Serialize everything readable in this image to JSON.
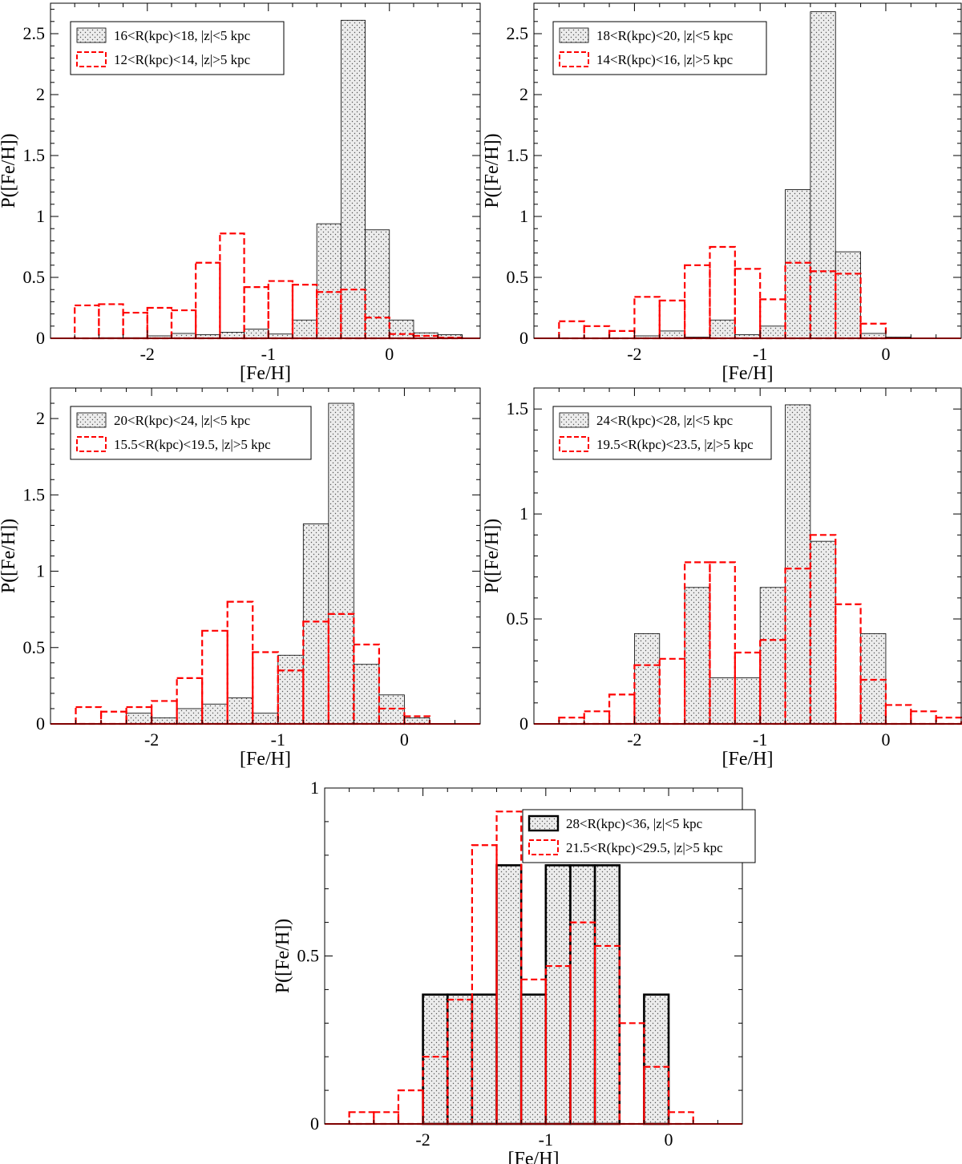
{
  "colors": {
    "black_series": "#000000",
    "red_series": "#ff0000",
    "fill": "#e6e6e6"
  },
  "chart_data": [
    {
      "type": "bar",
      "subtype": "histogram",
      "xlabel": "[Fe/H]",
      "ylabel": "P([Fe/H])",
      "xlim": [
        -2.8,
        0.75
      ],
      "ylim": [
        0,
        2.75
      ],
      "xticks": [
        -2,
        -1,
        0
      ],
      "xtick_labels": [
        "-2",
        "-1",
        "0"
      ],
      "yticks": [
        0,
        0.5,
        1,
        1.5,
        2,
        2.5
      ],
      "ytick_labels": [
        "0",
        "0.5",
        "1",
        "1.5",
        "2",
        "2.5"
      ],
      "legend_position": "top-left",
      "black_bold": false,
      "series": [
        {
          "name": "16<R(kpc)<18, |z|<5 kpc",
          "style": "dotted-fill",
          "bin_left": [
            -2.4,
            -2.2,
            -2.0,
            -1.8,
            -1.6,
            -1.4,
            -1.2,
            -1.0,
            -0.8,
            -0.6,
            -0.4,
            -0.2,
            0.0,
            0.2,
            0.4
          ],
          "bin_width": 0.2,
          "values": [
            0.005,
            0.005,
            0.02,
            0.04,
            0.03,
            0.05,
            0.075,
            0.035,
            0.15,
            0.94,
            2.61,
            0.89,
            0.15,
            0.045,
            0.03
          ]
        },
        {
          "name": "12<R(kpc)<14, |z|>5 kpc",
          "style": "dashed",
          "bin_left": [
            -2.6,
            -2.4,
            -2.2,
            -2.0,
            -1.8,
            -1.6,
            -1.4,
            -1.2,
            -1.0,
            -0.8,
            -0.6,
            -0.4,
            -0.2,
            0.0,
            0.2,
            0.4
          ],
          "bin_width": 0.2,
          "values": [
            0.27,
            0.28,
            0.21,
            0.25,
            0.23,
            0.62,
            0.86,
            0.42,
            0.47,
            0.44,
            0.38,
            0.4,
            0.17,
            0.035,
            0.02,
            0.005
          ]
        }
      ]
    },
    {
      "type": "bar",
      "subtype": "histogram",
      "xlabel": "[Fe/H]",
      "ylabel": "P([Fe/H])",
      "xlim": [
        -2.8,
        0.6
      ],
      "ylim": [
        0,
        2.75
      ],
      "xticks": [
        -2,
        -1,
        0
      ],
      "xtick_labels": [
        "-2",
        "-1",
        "0"
      ],
      "yticks": [
        0,
        0.5,
        1,
        1.5,
        2,
        2.5
      ],
      "ytick_labels": [
        "0",
        "0.5",
        "1",
        "1.5",
        "2",
        "2.5"
      ],
      "legend_position": "top-left",
      "black_bold": false,
      "series": [
        {
          "name": "18<R(kpc)<20, |z|<5 kpc",
          "style": "dotted-fill",
          "bin_left": [
            -2.0,
            -1.8,
            -1.6,
            -1.4,
            -1.2,
            -1.0,
            -0.8,
            -0.6,
            -0.4,
            -0.2,
            0.0
          ],
          "bin_width": 0.2,
          "values": [
            0.02,
            0.06,
            0.01,
            0.15,
            0.03,
            0.1,
            1.22,
            2.68,
            0.71,
            0.04,
            0.01
          ]
        },
        {
          "name": "14<R(kpc)<16, |z|>5 kpc",
          "style": "dashed",
          "bin_left": [
            -2.6,
            -2.4,
            -2.2,
            -2.0,
            -1.8,
            -1.6,
            -1.4,
            -1.2,
            -1.0,
            -0.8,
            -0.6,
            -0.4,
            -0.2
          ],
          "bin_width": 0.2,
          "values": [
            0.14,
            0.1,
            0.06,
            0.34,
            0.31,
            0.6,
            0.75,
            0.57,
            0.32,
            0.62,
            0.55,
            0.53,
            0.12
          ]
        }
      ]
    },
    {
      "type": "bar",
      "subtype": "histogram",
      "xlabel": "[Fe/H]",
      "ylabel": "P([Fe/H])",
      "xlim": [
        -2.8,
        0.6
      ],
      "ylim": [
        0,
        2.2
      ],
      "xticks": [
        -2,
        -1,
        0
      ],
      "xtick_labels": [
        "-2",
        "-1",
        "0"
      ],
      "yticks": [
        0,
        0.5,
        1,
        1.5,
        2
      ],
      "ytick_labels": [
        "0",
        "0.5",
        "1",
        "1.5",
        "2"
      ],
      "legend_position": "top-left",
      "black_bold": false,
      "series": [
        {
          "name": "20<R(kpc)<24, |z|<5 kpc",
          "style": "dotted-fill",
          "bin_left": [
            -2.2,
            -2.0,
            -1.8,
            -1.6,
            -1.4,
            -1.2,
            -1.0,
            -0.8,
            -0.6,
            -0.4,
            -0.2,
            0.0
          ],
          "bin_width": 0.2,
          "values": [
            0.07,
            0.04,
            0.1,
            0.13,
            0.17,
            0.07,
            0.45,
            1.31,
            2.1,
            0.39,
            0.19,
            0.04
          ]
        },
        {
          "name": "15.5<R(kpc)<19.5, |z|>5 kpc",
          "style": "dashed",
          "bin_left": [
            -2.6,
            -2.4,
            -2.2,
            -2.0,
            -1.8,
            -1.6,
            -1.4,
            -1.2,
            -1.0,
            -0.8,
            -0.6,
            -0.4,
            -0.2,
            0.0
          ],
          "bin_width": 0.2,
          "values": [
            0.11,
            0.08,
            0.11,
            0.15,
            0.3,
            0.61,
            0.8,
            0.47,
            0.35,
            0.67,
            0.72,
            0.52,
            0.1,
            0.05
          ]
        }
      ]
    },
    {
      "type": "bar",
      "subtype": "histogram",
      "xlabel": "[Fe/H]",
      "ylabel": "P([Fe/H])",
      "xlim": [
        -2.8,
        0.6
      ],
      "ylim": [
        0,
        1.6
      ],
      "xticks": [
        -2,
        -1,
        0
      ],
      "xtick_labels": [
        "-2",
        "-1",
        "0"
      ],
      "yticks": [
        0,
        0.5,
        1,
        1.5
      ],
      "ytick_labels": [
        "0",
        "0.5",
        "1",
        "1.5"
      ],
      "legend_position": "top-left",
      "black_bold": false,
      "series": [
        {
          "name": "24<R(kpc)<28, |z|<5 kpc",
          "style": "dotted-fill",
          "bin_left": [
            -2.0,
            -1.8,
            -1.6,
            -1.4,
            -1.2,
            -1.0,
            -0.8,
            -0.6,
            -0.4,
            -0.2
          ],
          "bin_width": 0.2,
          "values": [
            0.43,
            0.0,
            0.65,
            0.22,
            0.22,
            0.65,
            1.52,
            0.87,
            0.0,
            0.43
          ]
        },
        {
          "name": "19.5<R(kpc)<23.5, |z|>5 kpc",
          "style": "dashed",
          "bin_left": [
            -2.6,
            -2.4,
            -2.2,
            -2.0,
            -1.8,
            -1.6,
            -1.4,
            -1.2,
            -1.0,
            -0.8,
            -0.6,
            -0.4,
            -0.2,
            0.0,
            0.2,
            0.4
          ],
          "bin_width": 0.2,
          "values": [
            0.03,
            0.06,
            0.14,
            0.28,
            0.31,
            0.77,
            0.77,
            0.34,
            0.4,
            0.74,
            0.9,
            0.57,
            0.21,
            0.09,
            0.06,
            0.03
          ]
        }
      ]
    },
    {
      "type": "bar",
      "subtype": "histogram",
      "xlabel": "[Fe/H]",
      "ylabel": "P([Fe/H])",
      "xlim": [
        -2.8,
        0.6
      ],
      "ylim": [
        0,
        1.0
      ],
      "xticks": [
        -2,
        -1,
        0
      ],
      "xtick_labels": [
        "-2",
        "-1",
        "0"
      ],
      "yticks": [
        0,
        0.5,
        1
      ],
      "ytick_labels": [
        "0",
        "0.5",
        "1"
      ],
      "legend_position": "top-right",
      "black_bold": true,
      "series": [
        {
          "name": "28<R(kpc)<36, |z|<5 kpc",
          "style": "dotted-fill-bold",
          "bin_left": [
            -2.0,
            -1.8,
            -1.6,
            -1.4,
            -1.2,
            -1.0,
            -0.8,
            -0.6,
            -0.4,
            -0.2
          ],
          "bin_width": 0.2,
          "values": [
            0.385,
            0.385,
            0.385,
            0.77,
            0.385,
            0.77,
            0.77,
            0.77,
            0.0,
            0.385
          ]
        },
        {
          "name": "21.5<R(kpc)<29.5, |z|>5 kpc",
          "style": "dashed",
          "bin_left": [
            -2.6,
            -2.4,
            -2.2,
            -2.0,
            -1.8,
            -1.6,
            -1.4,
            -1.2,
            -1.0,
            -0.8,
            -0.6,
            -0.4,
            -0.2,
            0.0
          ],
          "bin_width": 0.2,
          "values": [
            0.035,
            0.035,
            0.1,
            0.2,
            0.37,
            0.83,
            0.93,
            0.43,
            0.47,
            0.6,
            0.53,
            0.3,
            0.17,
            0.035
          ]
        }
      ]
    }
  ]
}
